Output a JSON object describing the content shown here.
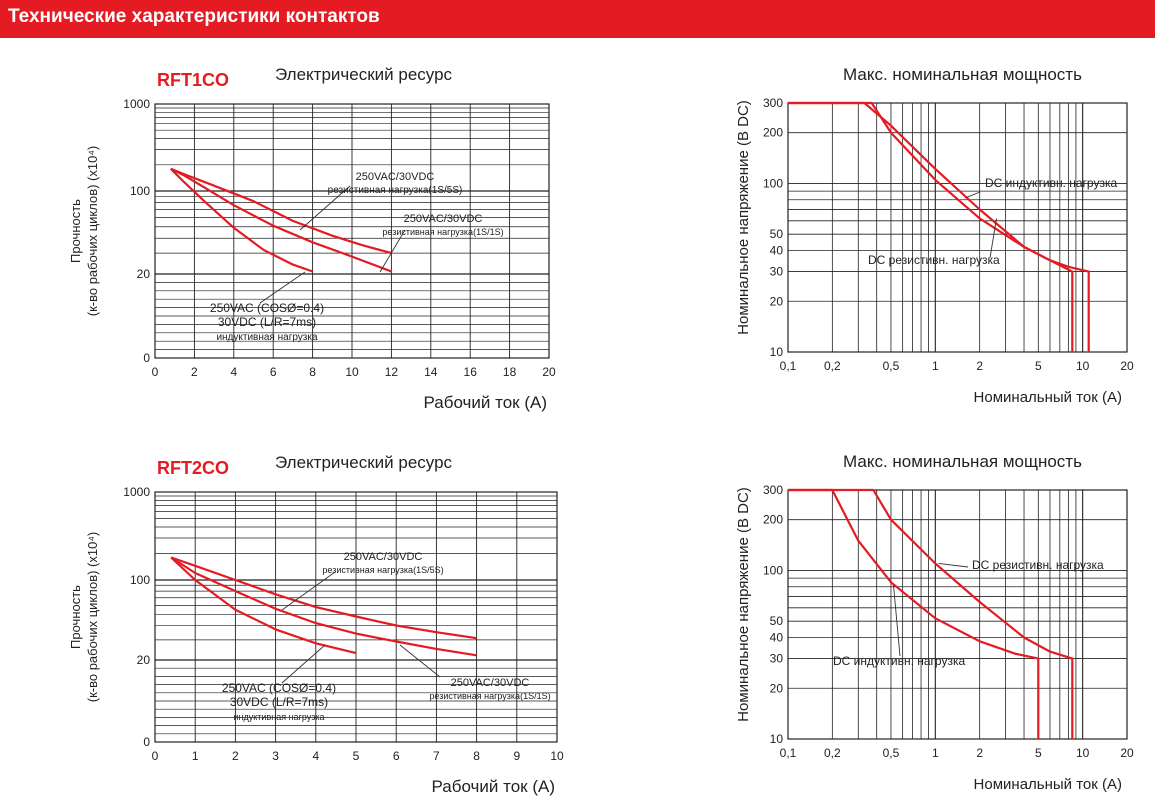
{
  "header": {
    "title": "Технические характеристики контактов"
  },
  "colors": {
    "accent": "#e41b23",
    "grid": "#222222"
  },
  "chart_data": [
    {
      "type": "line",
      "model": "RFT1CO",
      "title": "Электрический ресурс",
      "xlabel": "Рабочий ток (A)",
      "ylabel_line1": "Прочность",
      "ylabel_line2": "(к-во рабочих циклов) (x10⁴)",
      "xlim": [
        0,
        20
      ],
      "x_ticks": [
        "0",
        "2",
        "4",
        "6",
        "8",
        "10",
        "12",
        "14",
        "16",
        "18",
        "20"
      ],
      "y_ticks": [
        "0",
        "20",
        "100",
        "1000"
      ],
      "series": [
        {
          "points": [
            [
              0.8,
              180
            ],
            [
              1.5,
              155
            ],
            [
              3,
              115
            ],
            [
              5,
              82
            ],
            [
              7,
              56
            ],
            [
              9,
              42
            ],
            [
              10.5,
              35
            ],
            [
              12,
              30
            ]
          ]
        },
        {
          "points": [
            [
              0.8,
              180
            ],
            [
              1.5,
              150
            ],
            [
              2.5,
              110
            ],
            [
              4,
              76
            ],
            [
              6,
              51
            ],
            [
              8,
              37
            ],
            [
              10,
              28
            ],
            [
              12,
              21
            ]
          ]
        },
        {
          "points": [
            [
              0.8,
              180
            ],
            [
              1.5,
              125
            ],
            [
              2.5,
              82
            ],
            [
              4,
              49
            ],
            [
              5.5,
              32
            ],
            [
              7,
              24
            ],
            [
              8,
              21
            ]
          ]
        }
      ],
      "annotations": [
        {
          "line1": "250VAC/30VDC",
          "line2": "резистивная нагрузка(1S/5S)"
        },
        {
          "line1": "250VAC/30VDC",
          "line2": "резистивная нагрузка(1S/1S)"
        },
        {
          "line1": "250VAC (COSØ=0.4)",
          "line2": "30VDC (L/R=7ms)",
          "line3": "индуктивная нагрузка"
        }
      ]
    },
    {
      "type": "line",
      "title": "Макс. номинальная мощность",
      "xlabel": "Номинальный ток (A)",
      "ylabel": "Номинальное напряжение (B DC)",
      "xlim": [
        0.1,
        20
      ],
      "ylim": [
        10,
        300
      ],
      "scale": "log-log",
      "x_ticks": [
        "0,1",
        "0,2",
        "0,5",
        "1",
        "2",
        "5",
        "10",
        "20"
      ],
      "y_ticks": [
        "10",
        "20",
        "30",
        "40",
        "50",
        "100",
        "200",
        "300"
      ],
      "series": [
        {
          "name": "DC индуктивн. нагрузка",
          "points": [
            [
              0.1,
              300
            ],
            [
              0.33,
              300
            ],
            [
              0.5,
              220
            ],
            [
              1,
              122
            ],
            [
              2,
              70
            ],
            [
              4,
              42
            ],
            [
              6,
              35
            ],
            [
              8,
              32
            ],
            [
              11,
              30
            ],
            [
              11,
              10
            ]
          ]
        },
        {
          "name": "DC резистивн. нагрузка",
          "points": [
            [
              0.1,
              300
            ],
            [
              0.37,
              300
            ],
            [
              0.5,
              200
            ],
            [
              1,
              105
            ],
            [
              2,
              62
            ],
            [
              4,
              42
            ],
            [
              6,
              35
            ],
            [
              8.5,
              30
            ],
            [
              8.5,
              10
            ]
          ]
        }
      ],
      "legend_labels": [
        "DC индуктивн. нагрузка",
        "DC резистивн. нагрузка"
      ]
    },
    {
      "type": "line",
      "model": "RFT2CO",
      "title": "Электрический ресурс",
      "xlabel": "Рабочий ток (A)",
      "ylabel_line1": "Прочность",
      "ylabel_line2": "(к-во рабочих циклов) (x10⁴)",
      "xlim": [
        0,
        10
      ],
      "x_ticks": [
        "0",
        "1",
        "2",
        "3",
        "4",
        "5",
        "6",
        "7",
        "8",
        "9",
        "10"
      ],
      "y_ticks": [
        "0",
        "20",
        "100",
        "1000"
      ],
      "series": [
        {
          "points": [
            [
              0.4,
              180
            ],
            [
              1,
              145
            ],
            [
              2,
              100
            ],
            [
              3,
              75
            ],
            [
              4,
              58
            ],
            [
              5,
              48
            ],
            [
              6,
              40
            ],
            [
              7,
              35
            ],
            [
              8,
              31
            ]
          ]
        },
        {
          "points": [
            [
              0.4,
              180
            ],
            [
              1,
              120
            ],
            [
              2,
              80
            ],
            [
              3,
              56
            ],
            [
              4,
              42
            ],
            [
              5,
              34
            ],
            [
              6,
              29
            ],
            [
              7,
              25
            ],
            [
              8,
              22
            ]
          ]
        },
        {
          "points": [
            [
              0.4,
              180
            ],
            [
              1,
              100
            ],
            [
              2,
              55
            ],
            [
              3,
              37
            ],
            [
              4,
              28
            ],
            [
              5,
              23
            ]
          ]
        }
      ],
      "annotations": [
        {
          "line1": "250VAC/30VDC",
          "line2": "резистивная нагрузка(1S/5S)"
        },
        {
          "line1": "250VAC/30VDC",
          "line2": "резистивная нагрузка(1S/1S)"
        },
        {
          "line1": "250VAC (COSØ=0.4)",
          "line2": "30VDC (L/R=7ms)",
          "line3": "индуктивная нагрузка"
        }
      ]
    },
    {
      "type": "line",
      "title": "Макс. номинальная мощность",
      "xlabel": "Номинальный ток (A)",
      "ylabel": "Номинальное напряжение (B DC)",
      "xlim": [
        0.1,
        20
      ],
      "ylim": [
        10,
        300
      ],
      "scale": "log-log",
      "x_ticks": [
        "0,1",
        "0,2",
        "0,5",
        "1",
        "2",
        "5",
        "10",
        "20"
      ],
      "y_ticks": [
        "10",
        "20",
        "30",
        "40",
        "50",
        "100",
        "200",
        "300"
      ],
      "series": [
        {
          "name": "DC резистивн. нагрузка",
          "points": [
            [
              0.1,
              300
            ],
            [
              0.38,
              300
            ],
            [
              0.5,
              200
            ],
            [
              1,
              110
            ],
            [
              2,
              65
            ],
            [
              4,
              40
            ],
            [
              6,
              33
            ],
            [
              8.5,
              30
            ],
            [
              8.5,
              10
            ]
          ]
        },
        {
          "name": "DC индуктивн. нагрузка",
          "points": [
            [
              0.1,
              300
            ],
            [
              0.2,
              300
            ],
            [
              0.3,
              150
            ],
            [
              0.5,
              85
            ],
            [
              1,
              52
            ],
            [
              2,
              38
            ],
            [
              3.5,
              32
            ],
            [
              5,
              30
            ],
            [
              5,
              10
            ]
          ]
        }
      ],
      "legend_labels": [
        "DC резистивн. нагрузка",
        "DC индуктивн. нагрузка"
      ]
    }
  ]
}
